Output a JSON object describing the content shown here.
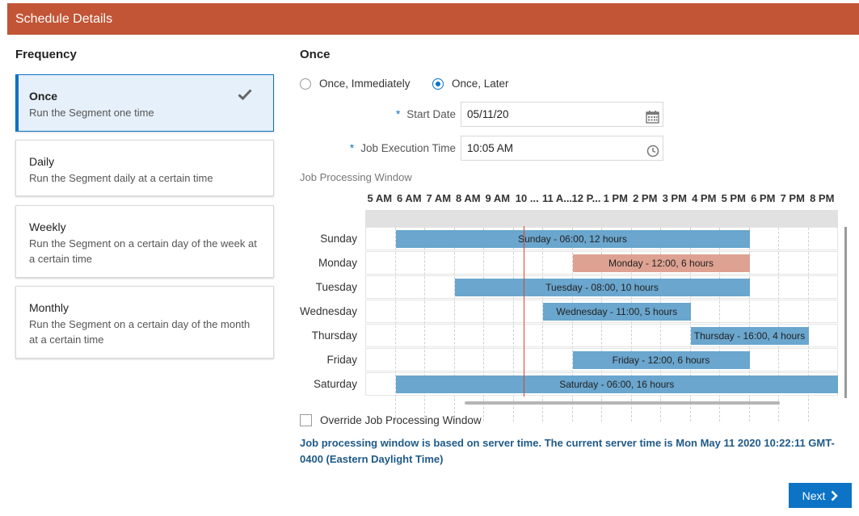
{
  "header": {
    "title": "Schedule Details"
  },
  "frequency": {
    "title": "Frequency",
    "options": [
      {
        "title": "Once",
        "desc": "Run the Segment one time",
        "selected": true
      },
      {
        "title": "Daily",
        "desc": "Run the Segment daily at a certain time",
        "selected": false
      },
      {
        "title": "Weekly",
        "desc": "Run the Segment on a certain day of the week at a certain time",
        "selected": false
      },
      {
        "title": "Monthly",
        "desc": "Run the Segment on a certain day of the month at a certain time",
        "selected": false
      }
    ]
  },
  "once": {
    "title": "Once",
    "radio_immediately": "Once, Immediately",
    "radio_later": "Once, Later",
    "selected_radio": "later",
    "start_date_label": "Start Date",
    "start_date_value": "05/11/20",
    "exec_time_label": "Job Execution Time",
    "exec_time_value": "10:05 AM",
    "required_marker": "*"
  },
  "window": {
    "label": "Job Processing Window",
    "hours": [
      "5 AM",
      "6 AM",
      "7 AM",
      "8 AM",
      "9 AM",
      "10 ...",
      "11 A...",
      "12 P...",
      "1 PM",
      "2 PM",
      "3 PM",
      "4 PM",
      "5 PM",
      "6 PM",
      "7 PM",
      "8 PM"
    ],
    "start_hour": 5,
    "days": [
      "Sunday",
      "Monday",
      "Tuesday",
      "Wednesday",
      "Thursday",
      "Friday",
      "Saturday"
    ],
    "bars": [
      {
        "day": "Sunday",
        "start": 6,
        "duration": 12,
        "label": "Sunday - 06:00, 12 hours",
        "color": "#6aa6ce"
      },
      {
        "day": "Monday",
        "start": 12,
        "duration": 6,
        "label": "Monday - 12:00, 6 hours",
        "color": "#dea292"
      },
      {
        "day": "Tuesday",
        "start": 8,
        "duration": 10,
        "label": "Tuesday - 08:00, 10 hours",
        "color": "#6aa6ce"
      },
      {
        "day": "Wednesday",
        "start": 11,
        "duration": 5,
        "label": "Wednesday - 11:00, 5 hours",
        "color": "#6aa6ce"
      },
      {
        "day": "Thursday",
        "start": 16,
        "duration": 4,
        "label": "Thursday - 16:00, 4 hours",
        "color": "#6aa6ce"
      },
      {
        "day": "Friday",
        "start": 12,
        "duration": 6,
        "label": "Friday - 12:00, 6 hours",
        "color": "#6aa6ce"
      },
      {
        "day": "Saturday",
        "start": 6,
        "duration": 16,
        "label": "Saturday - 06:00, 16 hours",
        "color": "#6aa6ce"
      }
    ],
    "current_time_hour": 10.37,
    "current_time_color": "#d7472b"
  },
  "override": {
    "label": "Override Job Processing Window",
    "checked": false
  },
  "info_text": "Job processing window is based on server time. The current server time is Mon May 11 2020 10:22:11 GMT-0400 (Eastern Daylight Time)",
  "next_button": {
    "label": "Next"
  },
  "colors": {
    "header": "#c15535",
    "accent": "#0c73c5",
    "info": "#1f5a88"
  }
}
